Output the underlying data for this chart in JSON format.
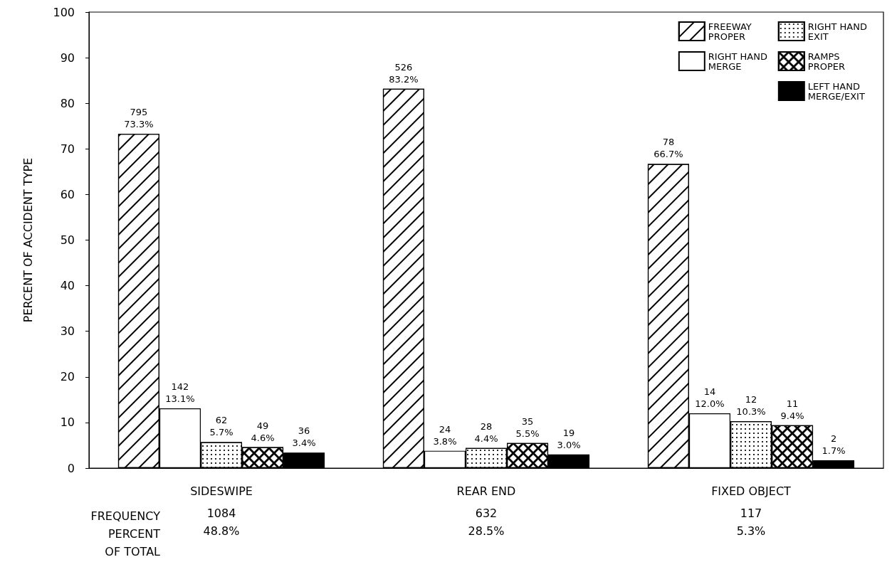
{
  "chart_data": {
    "type": "bar",
    "ylabel": "PERCENT OF ACCIDENT TYPE",
    "categories": [
      "SIDESWIPE",
      "REAR END",
      "FIXED OBJECT"
    ],
    "ylim": [
      0,
      100
    ],
    "yticks": [
      0,
      10,
      20,
      30,
      40,
      50,
      60,
      70,
      80,
      90,
      100
    ],
    "grid": false,
    "legend": "top right",
    "series": [
      {
        "name": "FREEWAY\nPROPER",
        "color": "#ffffff",
        "values": [
          73.3,
          83.2,
          66.7
        ],
        "value_labels": [
          "795\n73.3%",
          "526\n83.2%",
          "78\n66.7%"
        ]
      },
      {
        "name": "RIGHT HAND\nMERGE",
        "color": "#ffffff",
        "values": [
          13.1,
          3.8,
          12.0
        ],
        "value_labels": [
          "142\n13.1%",
          "24\n3.8%",
          "14\n12.0%"
        ]
      },
      {
        "name": "RIGHT HAND\nEXIT",
        "color": "#ffffff",
        "values": [
          5.7,
          4.4,
          10.3
        ],
        "value_labels": [
          "62\n5.7%",
          "28\n4.4%",
          "12\n10.3%"
        ]
      },
      {
        "name": "RAMPS\nPROPER",
        "color": "#ffffff",
        "values": [
          4.6,
          5.5,
          9.4
        ],
        "value_labels": [
          "49\n4.6%",
          "35\n5.5%",
          "11\n9.4%"
        ]
      },
      {
        "name": "LEFT HAND\nMERGE/EXIT",
        "color": "#000000",
        "values": [
          3.4,
          3.0,
          1.7
        ],
        "value_labels": [
          "36\n3.4%",
          "19\n3.0%",
          "2\n1.7%"
        ]
      }
    ],
    "annotations": [
      "FREQUENCY",
      "PERCENT\nOF TOTAL",
      "1084",
      "48.8%",
      "632",
      "28.5%",
      "117",
      "5.3%"
    ]
  }
}
